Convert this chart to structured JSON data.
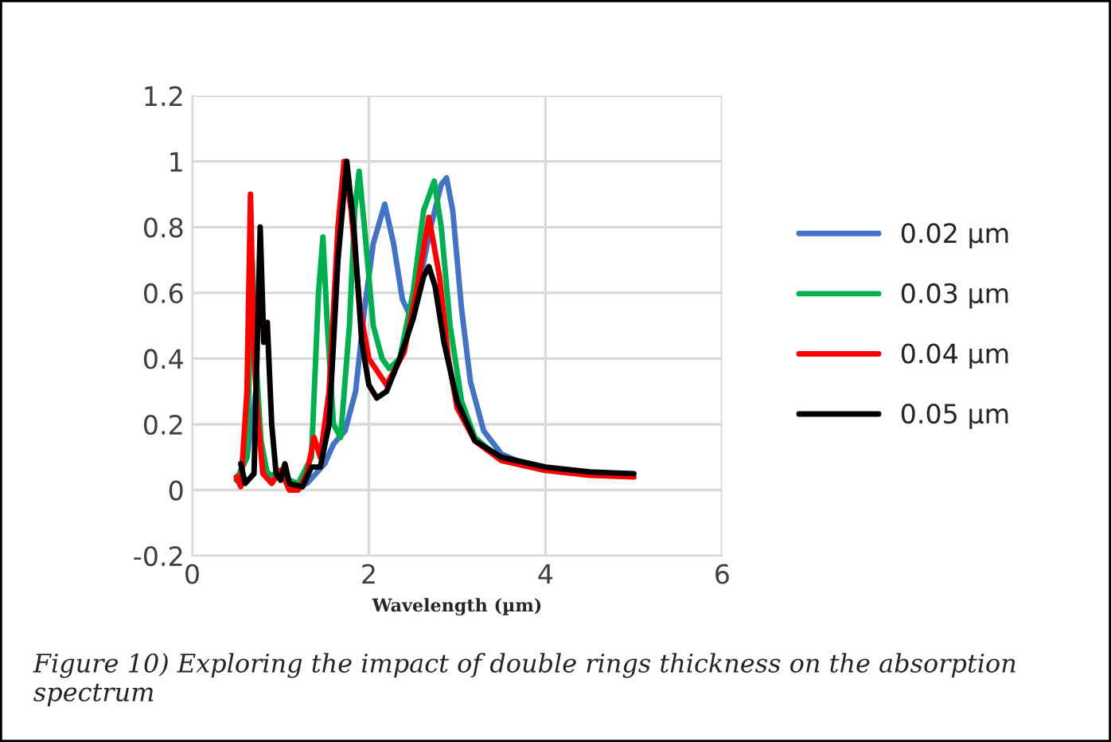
{
  "chart_data": {
    "type": "line",
    "xlabel": "Wavelength (µm)",
    "xlim": [
      0,
      6
    ],
    "xticks": [
      0,
      2,
      4,
      6
    ],
    "ylim": [
      -0.2,
      1.2
    ],
    "yticks": [
      -0.2,
      0,
      0.2,
      0.4,
      0.6,
      0.8,
      1,
      1.2
    ],
    "grid": true,
    "legend": "right",
    "marker": "none",
    "line_style": "solid",
    "annotations": [
      "Figure 10) Exploring the impact of double rings thickness on the absorption spectrum"
    ],
    "series": [
      {
        "name": "0.02 µm",
        "color": "#4472c4",
        "x": [
          0.5,
          0.62,
          0.68,
          0.72,
          0.8,
          0.9,
          1.0,
          1.1,
          1.3,
          1.5,
          1.6,
          1.73,
          1.85,
          1.95,
          2.05,
          2.18,
          2.28,
          2.38,
          2.45,
          2.55,
          2.7,
          2.82,
          2.88,
          2.95,
          3.05,
          3.15,
          3.3,
          3.5,
          3.8,
          4.2
        ],
        "values": [
          0.03,
          0.1,
          null,
          0.3,
          0.08,
          0.03,
          0.05,
          0.01,
          0.02,
          0.08,
          0.14,
          0.18,
          0.3,
          0.55,
          0.75,
          0.87,
          0.75,
          0.58,
          0.54,
          0.6,
          0.8,
          0.93,
          0.95,
          0.85,
          0.55,
          0.33,
          0.18,
          0.11,
          0.075,
          0.055
        ]
      },
      {
        "name": "0.03 µm",
        "color": "#00b050",
        "x": [
          0.5,
          0.62,
          0.68,
          0.72,
          0.78,
          0.85,
          1.0,
          1.2,
          1.35,
          1.43,
          1.48,
          1.53,
          1.6,
          1.68,
          1.78,
          1.84,
          1.89,
          1.95,
          2.05,
          2.15,
          2.23,
          2.35,
          2.5,
          2.62,
          2.74,
          2.82,
          2.92,
          3.05,
          3.2,
          3.5,
          4.0
        ],
        "values": [
          0.03,
          0.1,
          0.7,
          0.4,
          0.15,
          0.05,
          0.04,
          0.02,
          0.1,
          0.6,
          0.77,
          0.5,
          0.2,
          0.16,
          0.5,
          0.85,
          0.97,
          0.8,
          0.5,
          0.4,
          0.37,
          0.4,
          0.6,
          0.85,
          0.94,
          0.8,
          0.5,
          0.27,
          0.16,
          0.09,
          0.06
        ]
      },
      {
        "name": "0.04 µm",
        "color": "#ff0000",
        "x": [
          0.5,
          0.55,
          0.62,
          0.66,
          0.7,
          0.75,
          0.8,
          0.9,
          1.0,
          1.1,
          1.2,
          1.3,
          1.38,
          1.45,
          1.55,
          1.65,
          1.72,
          1.8,
          1.9,
          2.0,
          2.2,
          2.4,
          2.55,
          2.68,
          2.8,
          2.9,
          3.0,
          3.2,
          3.5,
          4.0,
          4.5,
          5.0
        ],
        "values": [
          0.04,
          0.01,
          0.3,
          0.9,
          0.4,
          0.2,
          0.05,
          0.02,
          0.06,
          0.0,
          0.0,
          0.05,
          0.16,
          0.1,
          0.3,
          0.8,
          1.0,
          0.85,
          0.55,
          0.4,
          0.32,
          0.42,
          0.62,
          0.83,
          0.65,
          0.4,
          0.25,
          0.15,
          0.09,
          0.06,
          0.045,
          0.04
        ]
      },
      {
        "name": "0.05 µm",
        "color": "#000000",
        "x": [
          0.55,
          0.6,
          0.7,
          0.77,
          0.81,
          0.85,
          0.9,
          0.95,
          1.0,
          1.05,
          1.1,
          1.25,
          1.35,
          1.45,
          1.55,
          1.65,
          1.75,
          1.83,
          1.92,
          2.0,
          2.09,
          2.2,
          2.35,
          2.5,
          2.62,
          2.68,
          2.75,
          2.85,
          3.0,
          3.2,
          3.5,
          4.0,
          4.5,
          5.0
        ],
        "values": [
          0.08,
          0.02,
          0.05,
          0.8,
          0.45,
          0.51,
          0.2,
          0.05,
          0.03,
          0.08,
          0.02,
          0.01,
          0.07,
          0.07,
          0.2,
          0.7,
          1.0,
          0.8,
          0.45,
          0.32,
          0.28,
          0.3,
          0.4,
          0.52,
          0.65,
          0.68,
          0.62,
          0.45,
          0.27,
          0.15,
          0.1,
          0.07,
          0.055,
          0.05
        ]
      }
    ]
  }
}
